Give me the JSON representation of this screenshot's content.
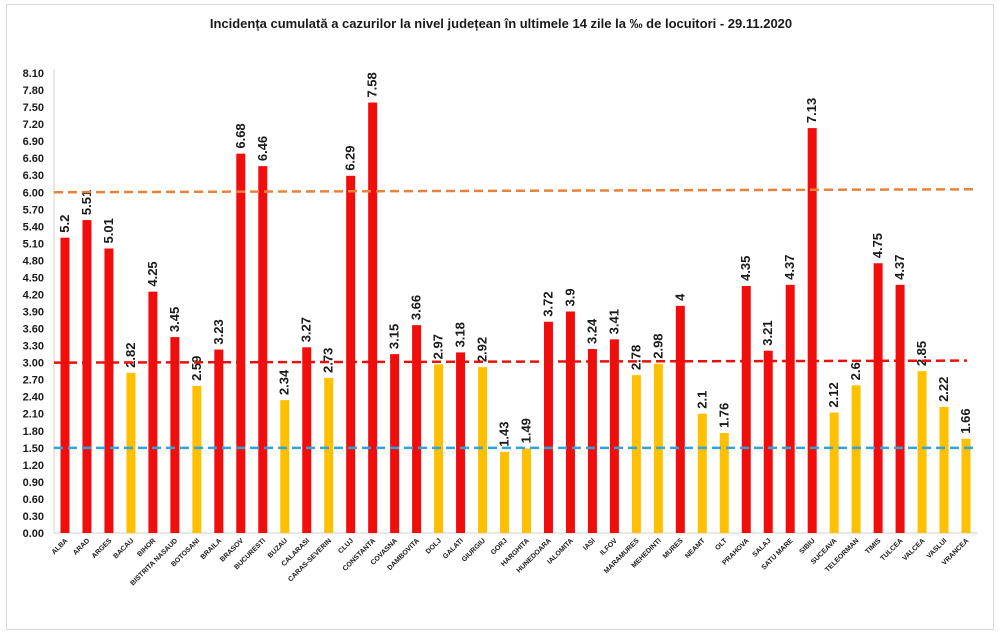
{
  "chart_data": {
    "type": "bar",
    "title": "Incidența cumulată a cazurilor la nivel județean în ultimele 14 zile la ‰ de locuitori - 29.11.2020",
    "xlabel": "",
    "ylabel": "",
    "ylim": [
      0,
      8.1
    ],
    "yticks": [
      "0.00",
      "0.30",
      "0.60",
      "0.90",
      "1.20",
      "1.50",
      "1.80",
      "2.10",
      "2.40",
      "2.70",
      "3.00",
      "3.30",
      "3.60",
      "3.90",
      "4.20",
      "4.50",
      "4.80",
      "5.10",
      "5.40",
      "5.70",
      "6.00",
      "6.30",
      "6.60",
      "6.90",
      "7.20",
      "7.50",
      "7.80",
      "8.10"
    ],
    "categories": [
      "ALBA",
      "ARAD",
      "ARGES",
      "BACAU",
      "BIHOR",
      "BISTRITA NASAUD",
      "BOTOSANI",
      "BRAILA",
      "BRASOV",
      "BUCURESTI",
      "BUZAU",
      "CALARASI",
      "CARAS-SEVERIN",
      "CLUJ",
      "CONSTANTA",
      "COVASNA",
      "DAMBOVITA",
      "DOLJ",
      "GALATI",
      "GIURGIU",
      "GORJ",
      "HARGHITA",
      "HUNEDOARA",
      "IALOMITA",
      "IASI",
      "ILFOV",
      "MARAMURES",
      "MEHEDINTI",
      "MURES",
      "NEAMT",
      "OLT",
      "PRAHOVA",
      "SALAJ",
      "SATU MARE",
      "SIBIU",
      "SUCEAVA",
      "TELEORMAN",
      "TIMIS",
      "TULCEA",
      "VALCEA",
      "VASLUI",
      "VRANCEA"
    ],
    "values": [
      5.2,
      5.51,
      5.01,
      2.82,
      4.25,
      3.45,
      2.59,
      3.23,
      6.68,
      6.46,
      2.34,
      3.27,
      2.73,
      6.29,
      7.58,
      3.15,
      3.66,
      2.97,
      3.18,
      2.92,
      1.43,
      1.49,
      3.72,
      3.9,
      3.24,
      3.41,
      2.78,
      2.98,
      4,
      2.1,
      1.76,
      4.35,
      3.21,
      4.37,
      7.13,
      2.12,
      2.6,
      4.75,
      4.37,
      2.85,
      2.22,
      1.66
    ],
    "value_labels": [
      "5.2",
      "5.51",
      "5.01",
      "2.82",
      "4.25",
      "3.45",
      "2.59",
      "3.23",
      "6.68",
      "6.46",
      "2.34",
      "3.27",
      "2.73",
      "6.29",
      "7.58",
      "3.15",
      "3.66",
      "2.97",
      "3.18",
      "2.92",
      "1.43",
      "1.49",
      "3.72",
      "3.9",
      "3.24",
      "3.41",
      "2.78",
      "2.98",
      "4",
      "2.1",
      "1.76",
      "4.35",
      "3.21",
      "4.37",
      "7.13",
      "2.12",
      "2.6",
      "4.75",
      "4.37",
      "2.85",
      "2.22",
      "1.66"
    ],
    "threshold_lines": [
      {
        "value": 1.5,
        "color": "#2ea3dc"
      },
      {
        "value": 3.0,
        "color": "#e8120c"
      },
      {
        "value": 6.0,
        "color": "#e8823a"
      }
    ],
    "colors": {
      "above_3": "#f20d0d",
      "below_3": "#ffc000"
    },
    "grid": false,
    "legend": "none"
  }
}
